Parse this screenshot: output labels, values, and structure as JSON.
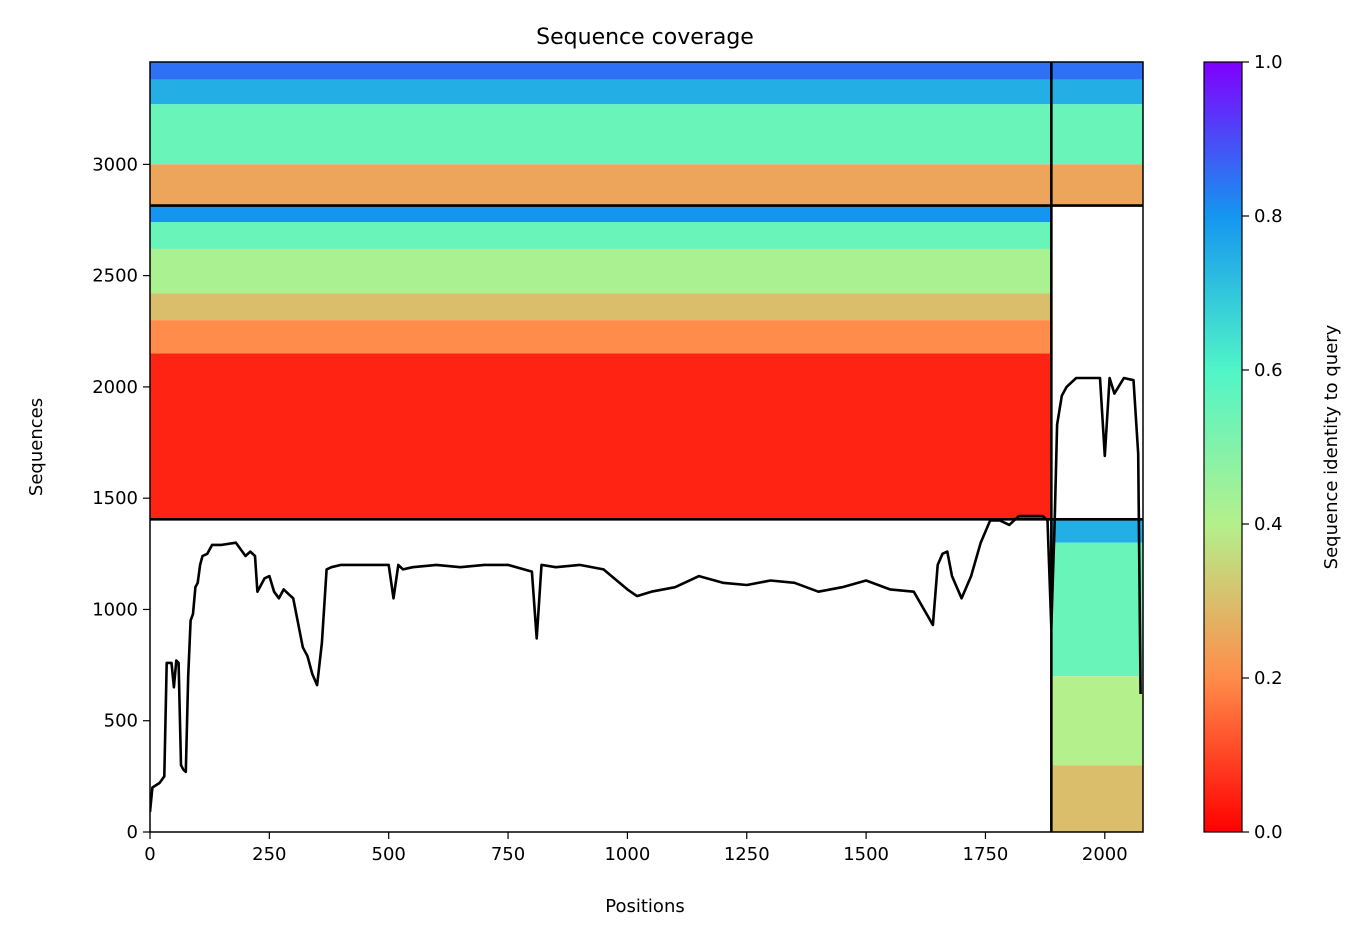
{
  "chart_data": {
    "type": "heatmap",
    "title": "Sequence coverage",
    "xlabel": "Positions",
    "ylabel": "Sequences",
    "xlim": [
      0,
      2080
    ],
    "ylim": [
      0,
      3460
    ],
    "xticks": [
      0,
      250,
      500,
      750,
      1000,
      1250,
      1500,
      1750,
      2000
    ],
    "yticks": [
      0,
      500,
      1000,
      1500,
      2000,
      2500,
      3000
    ],
    "colorbar": {
      "label": "Sequence identity to query",
      "range": [
        0.0,
        1.0
      ],
      "ticks": [
        "0.0",
        "0.2",
        "0.4",
        "0.6",
        "0.8",
        "1.0"
      ],
      "colormap": "rainbow"
    },
    "grid": false,
    "chain_boundary_x": 1888,
    "block_boundaries_y": [
      1405,
      2815
    ],
    "blocks": [
      {
        "name": "paired block",
        "y_range": [
          2815,
          3460
        ],
        "x_range": [
          0,
          2080
        ],
        "identity_bands": [
          {
            "y_range": [
              3380,
              3460
            ],
            "identity": 0.85
          },
          {
            "y_range": [
              3270,
              3380
            ],
            "identity": 0.75
          },
          {
            "y_range": [
              3000,
              3270
            ],
            "identity": 0.55
          },
          {
            "y_range": [
              2815,
              3000
            ],
            "identity": 0.25
          }
        ]
      },
      {
        "name": "chain A unpaired block",
        "y_range": [
          1405,
          2815
        ],
        "x_range": [
          0,
          1888
        ],
        "identity_bands": [
          {
            "y_range": [
              2740,
              2815
            ],
            "identity": 0.8
          },
          {
            "y_range": [
              2620,
              2740
            ],
            "identity": 0.55
          },
          {
            "y_range": [
              2420,
              2620
            ],
            "identity": 0.42
          },
          {
            "y_range": [
              2300,
              2420
            ],
            "identity": 0.3
          },
          {
            "y_range": [
              2150,
              2300
            ],
            "identity": 0.2
          },
          {
            "y_range": [
              1405,
              2150
            ],
            "identity": 0.05
          }
        ]
      },
      {
        "name": "chain B unpaired block",
        "y_range": [
          0,
          1405
        ],
        "x_range": [
          1888,
          2080
        ],
        "identity_bands": [
          {
            "y_range": [
              1300,
              1405
            ],
            "identity": 0.75
          },
          {
            "y_range": [
              700,
              1300
            ],
            "identity": 0.55
          },
          {
            "y_range": [
              300,
              700
            ],
            "identity": 0.4
          },
          {
            "y_range": [
              0,
              300
            ],
            "identity": 0.3
          }
        ]
      }
    ],
    "series": [
      {
        "type": "line",
        "color": "#000000",
        "x": [
          0,
          5,
          20,
          30,
          35,
          45,
          50,
          55,
          60,
          65,
          70,
          75,
          80,
          85,
          90,
          95,
          100,
          105,
          110,
          120,
          130,
          150,
          180,
          190,
          200,
          210,
          220,
          225,
          240,
          250,
          260,
          270,
          280,
          290,
          300,
          320,
          330,
          340,
          350,
          360,
          370,
          380,
          400,
          450,
          500,
          510,
          520,
          530,
          550,
          600,
          650,
          700,
          750,
          800,
          810,
          820,
          850,
          900,
          950,
          1000,
          1020,
          1050,
          1100,
          1150,
          1200,
          1250,
          1300,
          1350,
          1400,
          1450,
          1500,
          1550,
          1600,
          1640,
          1650,
          1660,
          1670,
          1680,
          1700,
          1720,
          1740,
          1760,
          1780,
          1800,
          1820,
          1850,
          1870,
          1880,
          1888,
          1895,
          1900,
          1910,
          1920,
          1940,
          1960,
          1980,
          1990,
          2000,
          2010,
          2020,
          2040,
          2060,
          2070,
          2075
        ],
        "y": [
          90,
          200,
          220,
          250,
          760,
          760,
          650,
          770,
          760,
          300,
          280,
          270,
          700,
          950,
          980,
          1100,
          1120,
          1200,
          1240,
          1250,
          1290,
          1290,
          1300,
          1270,
          1240,
          1260,
          1240,
          1080,
          1140,
          1150,
          1080,
          1050,
          1090,
          1070,
          1050,
          830,
          790,
          710,
          660,
          850,
          1180,
          1190,
          1200,
          1200,
          1200,
          1050,
          1200,
          1180,
          1190,
          1200,
          1190,
          1200,
          1200,
          1170,
          870,
          1200,
          1190,
          1200,
          1180,
          1090,
          1060,
          1080,
          1100,
          1150,
          1120,
          1110,
          1130,
          1120,
          1080,
          1100,
          1130,
          1090,
          1080,
          930,
          1200,
          1250,
          1260,
          1150,
          1050,
          1150,
          1300,
          1400,
          1400,
          1380,
          1420,
          1420,
          1420,
          1400,
          920,
          1400,
          1830,
          1960,
          2000,
          2040,
          2040,
          2040,
          2040,
          1690,
          2040,
          1970,
          2040,
          2030,
          1700,
          620
        ]
      }
    ]
  }
}
